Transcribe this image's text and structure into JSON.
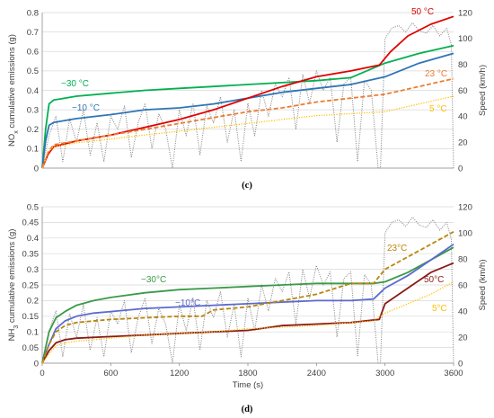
{
  "chart_data": [
    {
      "type": "line",
      "panel_label": "(c)",
      "xlabel": "",
      "ylabel": "NO",
      "ylabel_sub": "x",
      "ylabel_rest": " cumulative emissions (g)",
      "y2label": "Speed (km/h)",
      "xlim": [
        0,
        3600
      ],
      "ylim": [
        0,
        0.8
      ],
      "y2lim": [
        0,
        120
      ],
      "yticks": [
        "0",
        "0.1",
        "0.2",
        "0.3",
        "0.4",
        "0.5",
        "0.6",
        "0.7",
        "0.8"
      ],
      "y2ticks": [
        "0",
        "20",
        "40",
        "60",
        "80",
        "100",
        "120"
      ],
      "grid": true,
      "series": [
        {
          "name": "−30 °C",
          "color": "#00b050",
          "style": "solid",
          "x": [
            0,
            30,
            60,
            100,
            150,
            300,
            600,
            900,
            1200,
            1500,
            1800,
            2100,
            2400,
            2700,
            3000,
            3300,
            3600
          ],
          "y": [
            0,
            0.2,
            0.33,
            0.35,
            0.355,
            0.37,
            0.385,
            0.4,
            0.41,
            0.42,
            0.43,
            0.44,
            0.45,
            0.465,
            0.54,
            0.59,
            0.63
          ]
        },
        {
          "name": "−10 °C",
          "color": "#2e75b6",
          "style": "solid",
          "x": [
            0,
            30,
            60,
            100,
            150,
            300,
            600,
            900,
            1200,
            1500,
            1800,
            2100,
            2400,
            2700,
            3000,
            3300,
            3600
          ],
          "y": [
            0,
            0.14,
            0.22,
            0.235,
            0.24,
            0.255,
            0.275,
            0.3,
            0.31,
            0.33,
            0.36,
            0.39,
            0.41,
            0.43,
            0.47,
            0.54,
            0.59
          ]
        },
        {
          "name": "50 °C",
          "color": "#e00000",
          "style": "solid",
          "x": [
            0,
            50,
            100,
            300,
            600,
            900,
            1200,
            1500,
            1800,
            2100,
            2400,
            2700,
            2950,
            3050,
            3200,
            3400,
            3600
          ],
          "y": [
            0,
            0.07,
            0.11,
            0.14,
            0.17,
            0.21,
            0.25,
            0.3,
            0.36,
            0.42,
            0.47,
            0.5,
            0.53,
            0.6,
            0.68,
            0.74,
            0.78
          ]
        },
        {
          "name": "23 °C",
          "color": "#ed7d31",
          "style": "dashed",
          "x": [
            0,
            50,
            100,
            300,
            600,
            900,
            1200,
            1500,
            1800,
            2100,
            2400,
            2700,
            3000,
            3300,
            3600
          ],
          "y": [
            0,
            0.08,
            0.12,
            0.14,
            0.17,
            0.2,
            0.23,
            0.26,
            0.29,
            0.31,
            0.34,
            0.36,
            0.38,
            0.42,
            0.46
          ]
        },
        {
          "name": "5 °C",
          "color": "#ffc000",
          "style": "dotted",
          "x": [
            0,
            50,
            100,
            300,
            600,
            900,
            1200,
            1500,
            1800,
            2100,
            2400,
            2700,
            3000,
            3300,
            3600
          ],
          "y": [
            0,
            0.08,
            0.11,
            0.13,
            0.15,
            0.17,
            0.19,
            0.21,
            0.23,
            0.25,
            0.27,
            0.28,
            0.29,
            0.33,
            0.37
          ]
        },
        {
          "name": "",
          "axis": "right",
          "color": "#808080",
          "style": "dotted",
          "x": [
            0,
            60,
            120,
            180,
            240,
            300,
            360,
            420,
            480,
            540,
            600,
            660,
            720,
            780,
            840,
            900,
            960,
            1020,
            1080,
            1140,
            1200,
            1260,
            1320,
            1380,
            1440,
            1500,
            1560,
            1620,
            1680,
            1740,
            1800,
            1860,
            1920,
            1980,
            2040,
            2100,
            2160,
            2220,
            2280,
            2340,
            2400,
            2460,
            2520,
            2580,
            2640,
            2700,
            2760,
            2820,
            2880,
            2940,
            2960,
            3000,
            3060,
            3120,
            3180,
            3240,
            3300,
            3360,
            3420,
            3480,
            3540,
            3580,
            3600
          ],
          "y": [
            0,
            25,
            40,
            5,
            38,
            20,
            45,
            10,
            35,
            5,
            40,
            30,
            48,
            8,
            35,
            50,
            15,
            42,
            30,
            0,
            45,
            25,
            50,
            10,
            48,
            35,
            55,
            20,
            45,
            5,
            50,
            25,
            60,
            40,
            65,
            55,
            70,
            30,
            72,
            50,
            75,
            60,
            70,
            20,
            65,
            70,
            5,
            68,
            60,
            0,
            0,
            100,
            108,
            110,
            105,
            112,
            106,
            104,
            110,
            102,
            108,
            95,
            0
          ]
        }
      ]
    },
    {
      "type": "line",
      "panel_label": "(d)",
      "xlabel": "Time (s)",
      "ylabel": "NH",
      "ylabel_sub": "3",
      "ylabel_rest": " cumulative emissions (g)",
      "y2label": "Speed (km/h)",
      "xlim": [
        0,
        3600
      ],
      "ylim": [
        0,
        0.5
      ],
      "y2lim": [
        0,
        120
      ],
      "xticks": [
        "0",
        "600",
        "1200",
        "1800",
        "2400",
        "3000",
        "3600"
      ],
      "yticks": [
        "0",
        "0.05",
        "0.1",
        "0.15",
        "0.2",
        "0.25",
        "0.3",
        "0.35",
        "0.4",
        "0.45",
        "0.5"
      ],
      "y2ticks": [
        "0",
        "20",
        "40",
        "60",
        "80",
        "100",
        "120"
      ],
      "grid": true,
      "series": [
        {
          "name": "−30°C",
          "color": "#3a9a48",
          "style": "solid",
          "x": [
            0,
            60,
            120,
            200,
            300,
            450,
            600,
            900,
            1200,
            1500,
            1800,
            2100,
            2400,
            2700,
            2900,
            3000,
            3200,
            3400,
            3600
          ],
          "y": [
            0,
            0.1,
            0.145,
            0.165,
            0.185,
            0.2,
            0.21,
            0.225,
            0.235,
            0.24,
            0.245,
            0.25,
            0.255,
            0.255,
            0.255,
            0.26,
            0.29,
            0.33,
            0.37
          ]
        },
        {
          "name": "−10°C",
          "color": "#5b6ad0",
          "style": "solid",
          "x": [
            0,
            60,
            120,
            200,
            300,
            450,
            600,
            900,
            1200,
            1500,
            1800,
            2100,
            2400,
            2700,
            2900,
            3000,
            3200,
            3400,
            3600
          ],
          "y": [
            0,
            0.06,
            0.11,
            0.135,
            0.15,
            0.16,
            0.165,
            0.175,
            0.18,
            0.185,
            0.19,
            0.195,
            0.2,
            0.2,
            0.205,
            0.24,
            0.28,
            0.33,
            0.38
          ]
        },
        {
          "name": "50°C",
          "color": "#8b1a1a",
          "style": "solid",
          "x": [
            0,
            60,
            120,
            200,
            300,
            600,
            900,
            1200,
            1500,
            1800,
            2000,
            2100,
            2400,
            2700,
            2950,
            3000,
            3200,
            3400,
            3600
          ],
          "y": [
            0,
            0.04,
            0.065,
            0.075,
            0.08,
            0.085,
            0.09,
            0.095,
            0.1,
            0.105,
            0.115,
            0.12,
            0.125,
            0.13,
            0.14,
            0.19,
            0.24,
            0.29,
            0.32
          ]
        },
        {
          "name": "23°C",
          "color": "#b8860b",
          "style": "dashed",
          "x": [
            0,
            60,
            120,
            200,
            300,
            600,
            900,
            1200,
            1400,
            1500,
            1800,
            2100,
            2400,
            2700,
            2900,
            3000,
            3200,
            3400,
            3600
          ],
          "y": [
            0,
            0.06,
            0.1,
            0.12,
            0.13,
            0.14,
            0.145,
            0.15,
            0.15,
            0.17,
            0.18,
            0.2,
            0.22,
            0.255,
            0.255,
            0.3,
            0.34,
            0.38,
            0.42
          ]
        },
        {
          "name": "5°C",
          "color": "#ffc000",
          "style": "dotted",
          "x": [
            0,
            60,
            120,
            200,
            300,
            600,
            900,
            1200,
            1500,
            1800,
            2100,
            2400,
            2700,
            2900,
            3000,
            3200,
            3400,
            3600
          ],
          "y": [
            0,
            0.03,
            0.055,
            0.065,
            0.07,
            0.08,
            0.09,
            0.095,
            0.1,
            0.11,
            0.115,
            0.12,
            0.13,
            0.135,
            0.16,
            0.19,
            0.22,
            0.26
          ]
        },
        {
          "name": "",
          "axis": "right",
          "color": "#808080",
          "style": "dotted",
          "x": [
            0,
            60,
            120,
            180,
            240,
            300,
            360,
            420,
            480,
            540,
            600,
            660,
            720,
            780,
            840,
            900,
            960,
            1020,
            1080,
            1140,
            1200,
            1260,
            1320,
            1380,
            1440,
            1500,
            1560,
            1620,
            1680,
            1740,
            1800,
            1860,
            1920,
            1980,
            2040,
            2100,
            2160,
            2220,
            2280,
            2340,
            2400,
            2460,
            2520,
            2580,
            2640,
            2700,
            2760,
            2820,
            2880,
            2940,
            2960,
            3000,
            3060,
            3120,
            3180,
            3240,
            3300,
            3360,
            3420,
            3480,
            3540,
            3580,
            3600
          ],
          "y": [
            0,
            25,
            40,
            5,
            38,
            20,
            45,
            10,
            35,
            5,
            40,
            30,
            48,
            8,
            35,
            50,
            15,
            42,
            30,
            0,
            45,
            25,
            50,
            10,
            48,
            35,
            55,
            20,
            45,
            5,
            50,
            25,
            60,
            40,
            65,
            55,
            70,
            30,
            72,
            50,
            75,
            60,
            70,
            20,
            65,
            70,
            5,
            68,
            60,
            0,
            0,
            100,
            108,
            110,
            105,
            112,
            106,
            104,
            110,
            102,
            108,
            95,
            0
          ]
        }
      ]
    }
  ]
}
